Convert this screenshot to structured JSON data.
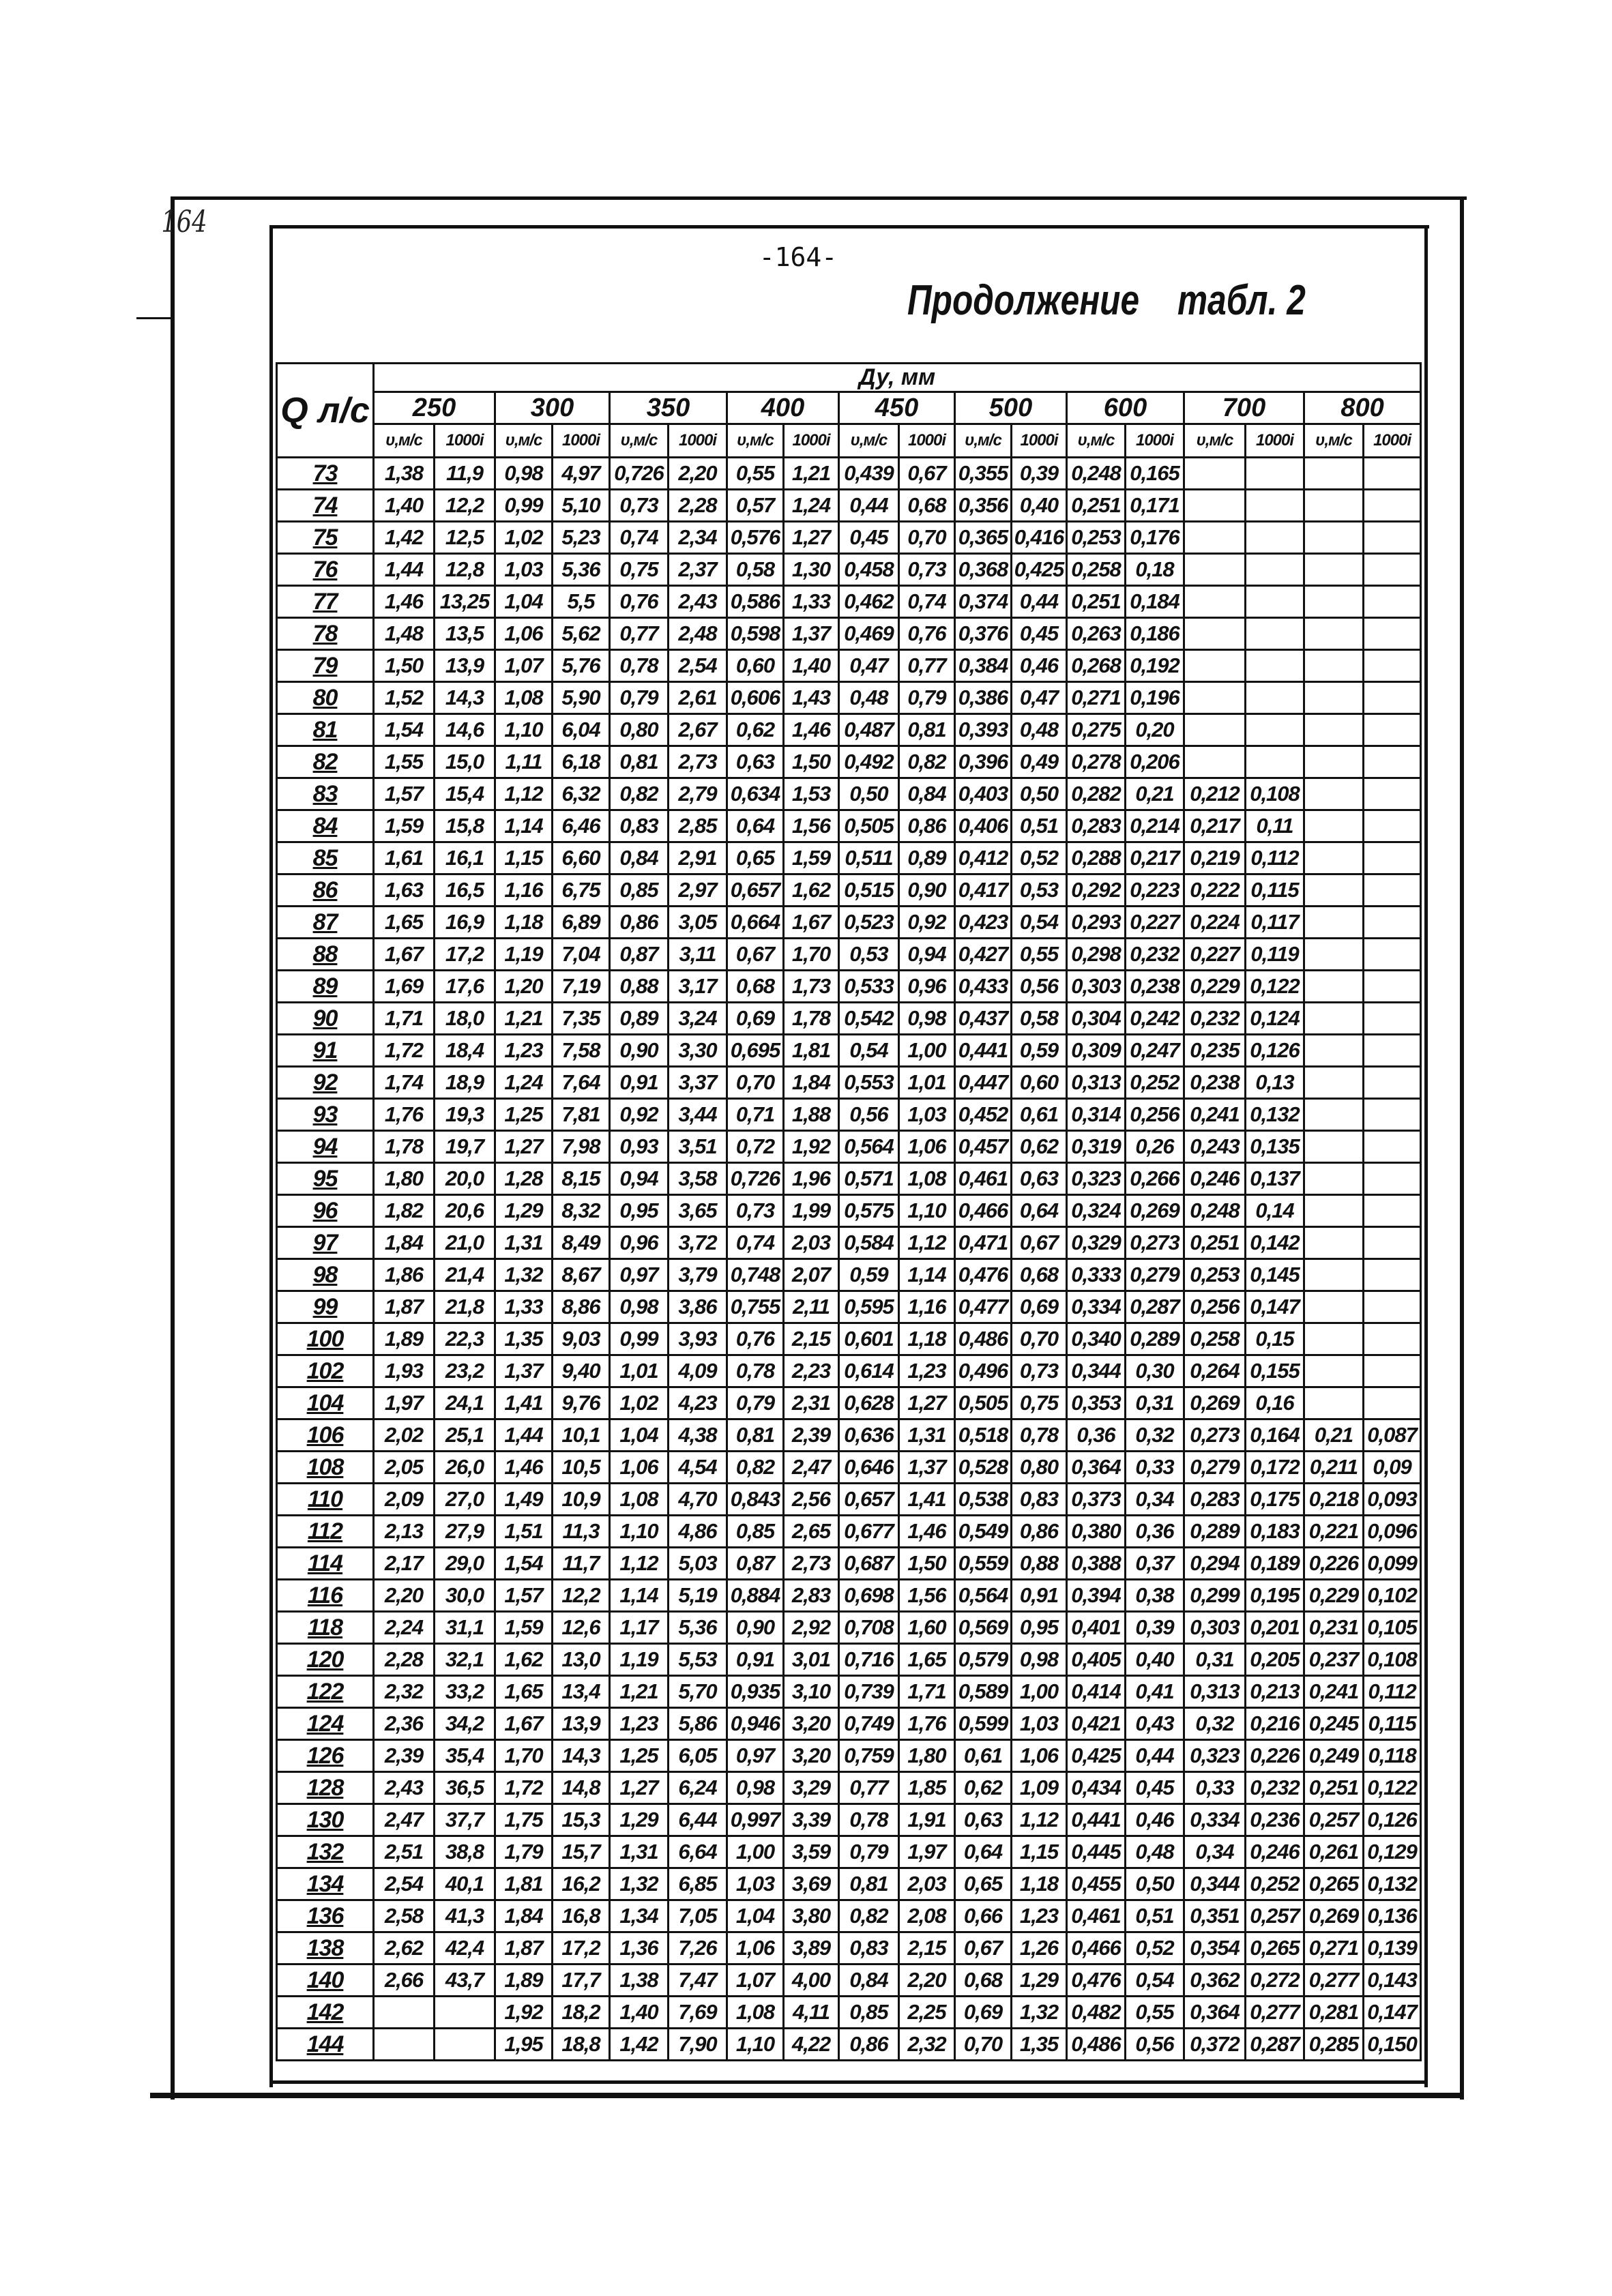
{
  "margin_page_number": "164",
  "page_number": "-164-",
  "caption": {
    "word": "Продолжение",
    "table_ref": "табл. 2"
  },
  "table": {
    "q_header": "Q л/с",
    "group_header": "Ду, мм",
    "diameters": [
      "250",
      "300",
      "350",
      "400",
      "450",
      "500",
      "600",
      "700",
      "800"
    ],
    "sub_headers": [
      "υ,м/с",
      "1000i"
    ],
    "rows": [
      {
        "q": "73",
        "v": [
          "1,38",
          "11,9",
          "0,98",
          "4,97",
          "0,726",
          "2,20",
          "0,55",
          "1,21",
          "0,439",
          "0,67",
          "0,355",
          "0,39",
          "0,248",
          "0,165",
          "",
          "",
          "",
          ""
        ]
      },
      {
        "q": "74",
        "v": [
          "1,40",
          "12,2",
          "0,99",
          "5,10",
          "0,73",
          "2,28",
          "0,57",
          "1,24",
          "0,44",
          "0,68",
          "0,356",
          "0,40",
          "0,251",
          "0,171",
          "",
          "",
          "",
          ""
        ]
      },
      {
        "q": "75",
        "v": [
          "1,42",
          "12,5",
          "1,02",
          "5,23",
          "0,74",
          "2,34",
          "0,576",
          "1,27",
          "0,45",
          "0,70",
          "0,365",
          "0,416",
          "0,253",
          "0,176",
          "",
          "",
          "",
          ""
        ]
      },
      {
        "q": "76",
        "v": [
          "1,44",
          "12,8",
          "1,03",
          "5,36",
          "0,75",
          "2,37",
          "0,58",
          "1,30",
          "0,458",
          "0,73",
          "0,368",
          "0,425",
          "0,258",
          "0,18",
          "",
          "",
          "",
          ""
        ]
      },
      {
        "q": "77",
        "v": [
          "1,46",
          "13,25",
          "1,04",
          "5,5",
          "0,76",
          "2,43",
          "0,586",
          "1,33",
          "0,462",
          "0,74",
          "0,374",
          "0,44",
          "0,251",
          "0,184",
          "",
          "",
          "",
          ""
        ]
      },
      {
        "q": "78",
        "v": [
          "1,48",
          "13,5",
          "1,06",
          "5,62",
          "0,77",
          "2,48",
          "0,598",
          "1,37",
          "0,469",
          "0,76",
          "0,376",
          "0,45",
          "0,263",
          "0,186",
          "",
          "",
          "",
          ""
        ]
      },
      {
        "q": "79",
        "v": [
          "1,50",
          "13,9",
          "1,07",
          "5,76",
          "0,78",
          "2,54",
          "0,60",
          "1,40",
          "0,47",
          "0,77",
          "0,384",
          "0,46",
          "0,268",
          "0,192",
          "",
          "",
          "",
          ""
        ]
      },
      {
        "q": "80",
        "v": [
          "1,52",
          "14,3",
          "1,08",
          "5,90",
          "0,79",
          "2,61",
          "0,606",
          "1,43",
          "0,48",
          "0,79",
          "0,386",
          "0,47",
          "0,271",
          "0,196",
          "",
          "",
          "",
          ""
        ]
      },
      {
        "q": "81",
        "v": [
          "1,54",
          "14,6",
          "1,10",
          "6,04",
          "0,80",
          "2,67",
          "0,62",
          "1,46",
          "0,487",
          "0,81",
          "0,393",
          "0,48",
          "0,275",
          "0,20",
          "",
          "",
          "",
          ""
        ]
      },
      {
        "q": "82",
        "v": [
          "1,55",
          "15,0",
          "1,11",
          "6,18",
          "0,81",
          "2,73",
          "0,63",
          "1,50",
          "0,492",
          "0,82",
          "0,396",
          "0,49",
          "0,278",
          "0,206",
          "",
          "",
          "",
          ""
        ]
      },
      {
        "q": "83",
        "v": [
          "1,57",
          "15,4",
          "1,12",
          "6,32",
          "0,82",
          "2,79",
          "0,634",
          "1,53",
          "0,50",
          "0,84",
          "0,403",
          "0,50",
          "0,282",
          "0,21",
          "0,212",
          "0,108",
          "",
          ""
        ]
      },
      {
        "q": "84",
        "v": [
          "1,59",
          "15,8",
          "1,14",
          "6,46",
          "0,83",
          "2,85",
          "0,64",
          "1,56",
          "0,505",
          "0,86",
          "0,406",
          "0,51",
          "0,283",
          "0,214",
          "0,217",
          "0,11",
          "",
          ""
        ]
      },
      {
        "q": "85",
        "v": [
          "1,61",
          "16,1",
          "1,15",
          "6,60",
          "0,84",
          "2,91",
          "0,65",
          "1,59",
          "0,511",
          "0,89",
          "0,412",
          "0,52",
          "0,288",
          "0,217",
          "0,219",
          "0,112",
          "",
          ""
        ]
      },
      {
        "q": "86",
        "v": [
          "1,63",
          "16,5",
          "1,16",
          "6,75",
          "0,85",
          "2,97",
          "0,657",
          "1,62",
          "0,515",
          "0,90",
          "0,417",
          "0,53",
          "0,292",
          "0,223",
          "0,222",
          "0,115",
          "",
          ""
        ]
      },
      {
        "q": "87",
        "v": [
          "1,65",
          "16,9",
          "1,18",
          "6,89",
          "0,86",
          "3,05",
          "0,664",
          "1,67",
          "0,523",
          "0,92",
          "0,423",
          "0,54",
          "0,293",
          "0,227",
          "0,224",
          "0,117",
          "",
          ""
        ]
      },
      {
        "q": "88",
        "v": [
          "1,67",
          "17,2",
          "1,19",
          "7,04",
          "0,87",
          "3,11",
          "0,67",
          "1,70",
          "0,53",
          "0,94",
          "0,427",
          "0,55",
          "0,298",
          "0,232",
          "0,227",
          "0,119",
          "",
          ""
        ]
      },
      {
        "q": "89",
        "v": [
          "1,69",
          "17,6",
          "1,20",
          "7,19",
          "0,88",
          "3,17",
          "0,68",
          "1,73",
          "0,533",
          "0,96",
          "0,433",
          "0,56",
          "0,303",
          "0,238",
          "0,229",
          "0,122",
          "",
          ""
        ]
      },
      {
        "q": "90",
        "v": [
          "1,71",
          "18,0",
          "1,21",
          "7,35",
          "0,89",
          "3,24",
          "0,69",
          "1,78",
          "0,542",
          "0,98",
          "0,437",
          "0,58",
          "0,304",
          "0,242",
          "0,232",
          "0,124",
          "",
          ""
        ]
      },
      {
        "q": "91",
        "v": [
          "1,72",
          "18,4",
          "1,23",
          "7,58",
          "0,90",
          "3,30",
          "0,695",
          "1,81",
          "0,54",
          "1,00",
          "0,441",
          "0,59",
          "0,309",
          "0,247",
          "0,235",
          "0,126",
          "",
          ""
        ]
      },
      {
        "q": "92",
        "v": [
          "1,74",
          "18,9",
          "1,24",
          "7,64",
          "0,91",
          "3,37",
          "0,70",
          "1,84",
          "0,553",
          "1,01",
          "0,447",
          "0,60",
          "0,313",
          "0,252",
          "0,238",
          "0,13",
          "",
          ""
        ]
      },
      {
        "q": "93",
        "v": [
          "1,76",
          "19,3",
          "1,25",
          "7,81",
          "0,92",
          "3,44",
          "0,71",
          "1,88",
          "0,56",
          "1,03",
          "0,452",
          "0,61",
          "0,314",
          "0,256",
          "0,241",
          "0,132",
          "",
          ""
        ]
      },
      {
        "q": "94",
        "v": [
          "1,78",
          "19,7",
          "1,27",
          "7,98",
          "0,93",
          "3,51",
          "0,72",
          "1,92",
          "0,564",
          "1,06",
          "0,457",
          "0,62",
          "0,319",
          "0,26",
          "0,243",
          "0,135",
          "",
          ""
        ]
      },
      {
        "q": "95",
        "v": [
          "1,80",
          "20,0",
          "1,28",
          "8,15",
          "0,94",
          "3,58",
          "0,726",
          "1,96",
          "0,571",
          "1,08",
          "0,461",
          "0,63",
          "0,323",
          "0,266",
          "0,246",
          "0,137",
          "",
          ""
        ]
      },
      {
        "q": "96",
        "v": [
          "1,82",
          "20,6",
          "1,29",
          "8,32",
          "0,95",
          "3,65",
          "0,73",
          "1,99",
          "0,575",
          "1,10",
          "0,466",
          "0,64",
          "0,324",
          "0,269",
          "0,248",
          "0,14",
          "",
          ""
        ]
      },
      {
        "q": "97",
        "v": [
          "1,84",
          "21,0",
          "1,31",
          "8,49",
          "0,96",
          "3,72",
          "0,74",
          "2,03",
          "0,584",
          "1,12",
          "0,471",
          "0,67",
          "0,329",
          "0,273",
          "0,251",
          "0,142",
          "",
          ""
        ]
      },
      {
        "q": "98",
        "v": [
          "1,86",
          "21,4",
          "1,32",
          "8,67",
          "0,97",
          "3,79",
          "0,748",
          "2,07",
          "0,59",
          "1,14",
          "0,476",
          "0,68",
          "0,333",
          "0,279",
          "0,253",
          "0,145",
          "",
          ""
        ]
      },
      {
        "q": "99",
        "v": [
          "1,87",
          "21,8",
          "1,33",
          "8,86",
          "0,98",
          "3,86",
          "0,755",
          "2,11",
          "0,595",
          "1,16",
          "0,477",
          "0,69",
          "0,334",
          "0,287",
          "0,256",
          "0,147",
          "",
          ""
        ]
      },
      {
        "q": "100",
        "v": [
          "1,89",
          "22,3",
          "1,35",
          "9,03",
          "0,99",
          "3,93",
          "0,76",
          "2,15",
          "0,601",
          "1,18",
          "0,486",
          "0,70",
          "0,340",
          "0,289",
          "0,258",
          "0,15",
          "",
          ""
        ]
      },
      {
        "q": "102",
        "v": [
          "1,93",
          "23,2",
          "1,37",
          "9,40",
          "1,01",
          "4,09",
          "0,78",
          "2,23",
          "0,614",
          "1,23",
          "0,496",
          "0,73",
          "0,344",
          "0,30",
          "0,264",
          "0,155",
          "",
          ""
        ]
      },
      {
        "q": "104",
        "v": [
          "1,97",
          "24,1",
          "1,41",
          "9,76",
          "1,02",
          "4,23",
          "0,79",
          "2,31",
          "0,628",
          "1,27",
          "0,505",
          "0,75",
          "0,353",
          "0,31",
          "0,269",
          "0,16",
          "",
          ""
        ]
      },
      {
        "q": "106",
        "v": [
          "2,02",
          "25,1",
          "1,44",
          "10,1",
          "1,04",
          "4,38",
          "0,81",
          "2,39",
          "0,636",
          "1,31",
          "0,518",
          "0,78",
          "0,36",
          "0,32",
          "0,273",
          "0,164",
          "0,21",
          "0,087"
        ]
      },
      {
        "q": "108",
        "v": [
          "2,05",
          "26,0",
          "1,46",
          "10,5",
          "1,06",
          "4,54",
          "0,82",
          "2,47",
          "0,646",
          "1,37",
          "0,528",
          "0,80",
          "0,364",
          "0,33",
          "0,279",
          "0,172",
          "0,211",
          "0,09"
        ]
      },
      {
        "q": "110",
        "v": [
          "2,09",
          "27,0",
          "1,49",
          "10,9",
          "1,08",
          "4,70",
          "0,843",
          "2,56",
          "0,657",
          "1,41",
          "0,538",
          "0,83",
          "0,373",
          "0,34",
          "0,283",
          "0,175",
          "0,218",
          "0,093"
        ]
      },
      {
        "q": "112",
        "v": [
          "2,13",
          "27,9",
          "1,51",
          "11,3",
          "1,10",
          "4,86",
          "0,85",
          "2,65",
          "0,677",
          "1,46",
          "0,549",
          "0,86",
          "0,380",
          "0,36",
          "0,289",
          "0,183",
          "0,221",
          "0,096"
        ]
      },
      {
        "q": "114",
        "v": [
          "2,17",
          "29,0",
          "1,54",
          "11,7",
          "1,12",
          "5,03",
          "0,87",
          "2,73",
          "0,687",
          "1,50",
          "0,559",
          "0,88",
          "0,388",
          "0,37",
          "0,294",
          "0,189",
          "0,226",
          "0,099"
        ]
      },
      {
        "q": "116",
        "v": [
          "2,20",
          "30,0",
          "1,57",
          "12,2",
          "1,14",
          "5,19",
          "0,884",
          "2,83",
          "0,698",
          "1,56",
          "0,564",
          "0,91",
          "0,394",
          "0,38",
          "0,299",
          "0,195",
          "0,229",
          "0,102"
        ]
      },
      {
        "q": "118",
        "v": [
          "2,24",
          "31,1",
          "1,59",
          "12,6",
          "1,17",
          "5,36",
          "0,90",
          "2,92",
          "0,708",
          "1,60",
          "0,569",
          "0,95",
          "0,401",
          "0,39",
          "0,303",
          "0,201",
          "0,231",
          "0,105"
        ]
      },
      {
        "q": "120",
        "v": [
          "2,28",
          "32,1",
          "1,62",
          "13,0",
          "1,19",
          "5,53",
          "0,91",
          "3,01",
          "0,716",
          "1,65",
          "0,579",
          "0,98",
          "0,405",
          "0,40",
          "0,31",
          "0,205",
          "0,237",
          "0,108"
        ]
      },
      {
        "q": "122",
        "v": [
          "2,32",
          "33,2",
          "1,65",
          "13,4",
          "1,21",
          "5,70",
          "0,935",
          "3,10",
          "0,739",
          "1,71",
          "0,589",
          "1,00",
          "0,414",
          "0,41",
          "0,313",
          "0,213",
          "0,241",
          "0,112"
        ]
      },
      {
        "q": "124",
        "v": [
          "2,36",
          "34,2",
          "1,67",
          "13,9",
          "1,23",
          "5,86",
          "0,946",
          "3,20",
          "0,749",
          "1,76",
          "0,599",
          "1,03",
          "0,421",
          "0,43",
          "0,32",
          "0,216",
          "0,245",
          "0,115"
        ]
      },
      {
        "q": "126",
        "v": [
          "2,39",
          "35,4",
          "1,70",
          "14,3",
          "1,25",
          "6,05",
          "0,97",
          "3,20",
          "0,759",
          "1,80",
          "0,61",
          "1,06",
          "0,425",
          "0,44",
          "0,323",
          "0,226",
          "0,249",
          "0,118"
        ]
      },
      {
        "q": "128",
        "v": [
          "2,43",
          "36,5",
          "1,72",
          "14,8",
          "1,27",
          "6,24",
          "0,98",
          "3,29",
          "0,77",
          "1,85",
          "0,62",
          "1,09",
          "0,434",
          "0,45",
          "0,33",
          "0,232",
          "0,251",
          "0,122"
        ]
      },
      {
        "q": "130",
        "v": [
          "2,47",
          "37,7",
          "1,75",
          "15,3",
          "1,29",
          "6,44",
          "0,997",
          "3,39",
          "0,78",
          "1,91",
          "0,63",
          "1,12",
          "0,441",
          "0,46",
          "0,334",
          "0,236",
          "0,257",
          "0,126"
        ]
      },
      {
        "q": "132",
        "v": [
          "2,51",
          "38,8",
          "1,79",
          "15,7",
          "1,31",
          "6,64",
          "1,00",
          "3,59",
          "0,79",
          "1,97",
          "0,64",
          "1,15",
          "0,445",
          "0,48",
          "0,34",
          "0,246",
          "0,261",
          "0,129"
        ]
      },
      {
        "q": "134",
        "v": [
          "2,54",
          "40,1",
          "1,81",
          "16,2",
          "1,32",
          "6,85",
          "1,03",
          "3,69",
          "0,81",
          "2,03",
          "0,65",
          "1,18",
          "0,455",
          "0,50",
          "0,344",
          "0,252",
          "0,265",
          "0,132"
        ]
      },
      {
        "q": "136",
        "v": [
          "2,58",
          "41,3",
          "1,84",
          "16,8",
          "1,34",
          "7,05",
          "1,04",
          "3,80",
          "0,82",
          "2,08",
          "0,66",
          "1,23",
          "0,461",
          "0,51",
          "0,351",
          "0,257",
          "0,269",
          "0,136"
        ]
      },
      {
        "q": "138",
        "v": [
          "2,62",
          "42,4",
          "1,87",
          "17,2",
          "1,36",
          "7,26",
          "1,06",
          "3,89",
          "0,83",
          "2,15",
          "0,67",
          "1,26",
          "0,466",
          "0,52",
          "0,354",
          "0,265",
          "0,271",
          "0,139"
        ]
      },
      {
        "q": "140",
        "v": [
          "2,66",
          "43,7",
          "1,89",
          "17,7",
          "1,38",
          "7,47",
          "1,07",
          "4,00",
          "0,84",
          "2,20",
          "0,68",
          "1,29",
          "0,476",
          "0,54",
          "0,362",
          "0,272",
          "0,277",
          "0,143"
        ]
      },
      {
        "q": "142",
        "v": [
          "",
          "",
          "1,92",
          "18,2",
          "1,40",
          "7,69",
          "1,08",
          "4,11",
          "0,85",
          "2,25",
          "0,69",
          "1,32",
          "0,482",
          "0,55",
          "0,364",
          "0,277",
          "0,281",
          "0,147"
        ]
      },
      {
        "q": "144",
        "v": [
          "",
          "",
          "1,95",
          "18,8",
          "1,42",
          "7,90",
          "1,10",
          "4,22",
          "0,86",
          "2,32",
          "0,70",
          "1,35",
          "0,486",
          "0,56",
          "0,372",
          "0,287",
          "0,285",
          "0,150"
        ]
      }
    ]
  }
}
